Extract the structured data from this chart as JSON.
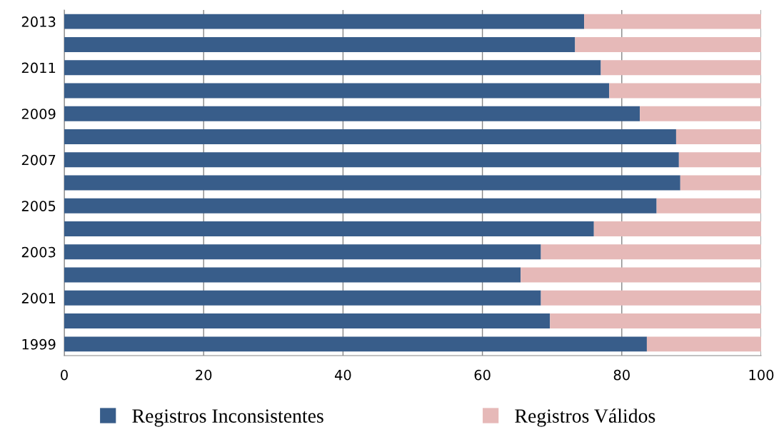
{
  "chart_data": {
    "type": "bar",
    "orientation": "horizontal",
    "stacked": true,
    "categories": [
      "2013",
      null,
      "2011",
      null,
      "2009",
      null,
      "2007",
      null,
      "2005",
      null,
      "2003",
      null,
      "2001",
      null,
      "1999"
    ],
    "series": [
      {
        "name": "Registros Inconsistentes",
        "color": "#385d8a",
        "values": [
          74.6,
          73.3,
          77.0,
          78.2,
          82.6,
          87.8,
          88.2,
          88.4,
          85.0,
          76.0,
          68.4,
          65.5,
          68.4,
          69.7,
          83.6
        ]
      },
      {
        "name": "Registros Válidos",
        "color": "#e6b9b8",
        "values": [
          25.4,
          26.7,
          23.0,
          21.8,
          17.4,
          12.2,
          11.8,
          11.6,
          15.0,
          24.0,
          31.6,
          34.5,
          31.6,
          30.3,
          16.4
        ]
      }
    ],
    "xlim": [
      0,
      100
    ],
    "xticks": [
      0,
      20,
      40,
      60,
      80,
      100
    ],
    "grid": "x",
    "legend": "bottom"
  }
}
